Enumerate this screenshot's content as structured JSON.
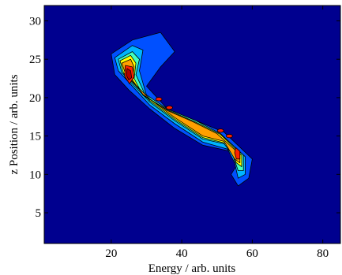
{
  "chart_data": {
    "type": "heatmap",
    "title": "",
    "xlabel": "Energy / arb. units",
    "ylabel": "z Position / arb. units",
    "xlim": [
      1,
      85
    ],
    "ylim": [
      1,
      32
    ],
    "xticks": [
      20,
      40,
      60,
      80
    ],
    "yticks": [
      5,
      10,
      15,
      20,
      25,
      30
    ],
    "xtick_labels": [
      "20",
      "40",
      "60",
      "80"
    ],
    "ytick_labels": [
      "5",
      "10",
      "15",
      "20",
      "25",
      "30"
    ],
    "grid": false,
    "colormap": "jet",
    "background_color": "#00008f",
    "levels": [
      {
        "level": 1,
        "color": "#0050ff",
        "points": [
          [
            20,
            25.7
          ],
          [
            26,
            27.5
          ],
          [
            34,
            28.5
          ],
          [
            38,
            26
          ],
          [
            34,
            24
          ],
          [
            30,
            21.5
          ],
          [
            36,
            18.5
          ],
          [
            44,
            17
          ],
          [
            52,
            15.5
          ],
          [
            60,
            12
          ],
          [
            59,
            9.5
          ],
          [
            56,
            8.5
          ],
          [
            54,
            10
          ],
          [
            56,
            11.5
          ],
          [
            54,
            13
          ],
          [
            46,
            13.8
          ],
          [
            38,
            16
          ],
          [
            31,
            18.5
          ],
          [
            25,
            21
          ],
          [
            21,
            23
          ]
        ]
      },
      {
        "level": 2,
        "color": "#00b4ff",
        "points": [
          [
            21,
            25.2
          ],
          [
            26,
            26.8
          ],
          [
            29,
            26.2
          ],
          [
            28,
            23.5
          ],
          [
            30,
            20.3
          ],
          [
            36,
            18.3
          ],
          [
            44,
            16.8
          ],
          [
            51,
            15.3
          ],
          [
            58,
            12.3
          ],
          [
            58,
            10
          ],
          [
            56,
            9.5
          ],
          [
            55,
            11.5
          ],
          [
            53,
            13.3
          ],
          [
            46,
            14.2
          ],
          [
            38,
            16.6
          ],
          [
            31,
            19
          ],
          [
            26,
            21.5
          ],
          [
            22,
            23.5
          ]
        ]
      },
      {
        "level": 3,
        "color": "#40ffbf",
        "points": [
          [
            22,
            25
          ],
          [
            26,
            26
          ],
          [
            28,
            25
          ],
          [
            27,
            23
          ],
          [
            29.5,
            20.5
          ],
          [
            36,
            18.5
          ],
          [
            44,
            17
          ],
          [
            51,
            15.3
          ],
          [
            57.5,
            12.5
          ],
          [
            57.5,
            10.5
          ],
          [
            56,
            10.5
          ],
          [
            54.5,
            12.5
          ],
          [
            52,
            14
          ],
          [
            46,
            14.6
          ],
          [
            38,
            17
          ],
          [
            31,
            19.4
          ],
          [
            26,
            21.8
          ],
          [
            23,
            23.3
          ]
        ]
      },
      {
        "level": 4,
        "color": "#ffff00",
        "points": [
          [
            22.5,
            24.8
          ],
          [
            25.5,
            25.5
          ],
          [
            27,
            24.5
          ],
          [
            26.5,
            22.5
          ],
          [
            29,
            20.3
          ],
          [
            36,
            18.4
          ],
          [
            44,
            16.8
          ],
          [
            51,
            15.2
          ],
          [
            57,
            12.5
          ],
          [
            57,
            11
          ],
          [
            55.5,
            11.5
          ],
          [
            53,
            14
          ],
          [
            46,
            14.8
          ],
          [
            38,
            17.2
          ],
          [
            31,
            19.6
          ],
          [
            26,
            22
          ],
          [
            23.5,
            23.2
          ]
        ]
      },
      {
        "level": 5,
        "color": "#ffa000",
        "points": [
          [
            23,
            24.5
          ],
          [
            25.5,
            25
          ],
          [
            26.5,
            24
          ],
          [
            26,
            22.3
          ],
          [
            29,
            20.4
          ],
          [
            36,
            18.3
          ],
          [
            43,
            16.9
          ],
          [
            50,
            15.3
          ],
          [
            56.5,
            12.6
          ],
          [
            56.5,
            11.5
          ],
          [
            55,
            12
          ],
          [
            52,
            14.3
          ],
          [
            46,
            15
          ],
          [
            38,
            17.4
          ],
          [
            31,
            19.8
          ],
          [
            26,
            22.1
          ],
          [
            24,
            23.2
          ]
        ]
      },
      {
        "level": 6,
        "color": "#ff2000",
        "points": [
          [
            24,
            24.2
          ],
          [
            26,
            24
          ],
          [
            26.5,
            22.7
          ],
          [
            25.2,
            21.8
          ],
          [
            23.8,
            22.8
          ]
        ]
      },
      {
        "level": 6,
        "color": "#ff2000",
        "points": [
          [
            55.3,
            13.5
          ],
          [
            56.5,
            13
          ],
          [
            56.5,
            12
          ],
          [
            55.5,
            12
          ],
          [
            55,
            12.8
          ]
        ]
      },
      {
        "level": 7,
        "color": "#b00000",
        "points": [
          [
            24.5,
            23.8
          ],
          [
            25.5,
            23.5
          ],
          [
            25.8,
            22.6
          ],
          [
            25,
            22.3
          ],
          [
            24.3,
            22.9
          ]
        ]
      }
    ],
    "islands": [
      {
        "level": 6,
        "color": "#ff2000",
        "x": 33.5,
        "y": 19.8
      },
      {
        "level": 6,
        "color": "#ff2000",
        "x": 36.5,
        "y": 18.7
      },
      {
        "level": 6,
        "color": "#ff2000",
        "x": 51,
        "y": 15.7
      },
      {
        "level": 6,
        "color": "#ff2000",
        "x": 53.5,
        "y": 15
      }
    ]
  }
}
